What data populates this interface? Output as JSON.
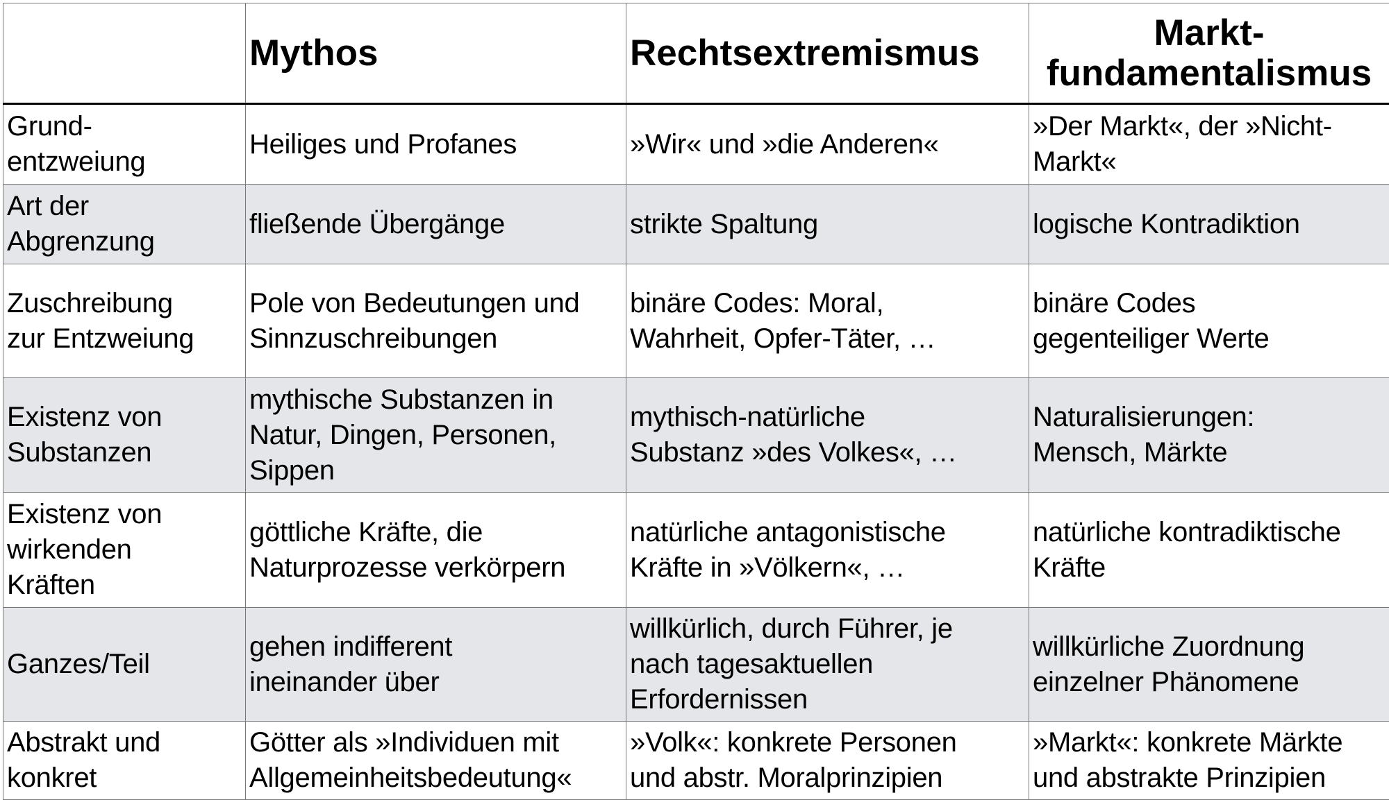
{
  "header": [
    "",
    "Mythos",
    "Rechtsextremismus",
    "Markt-\nfundamentalismus"
  ],
  "rows": [
    [
      "Grund-\nentzweiung",
      "Heiliges und Profanes",
      "»Wir« und »die Anderen«",
      "»Der Markt«, der »Nicht-\nMarkt«"
    ],
    [
      "Art der\nAbgrenzung",
      "fließende Übergänge",
      "strikte Spaltung",
      "logische Kontradiktion"
    ],
    [
      "Zuschreibung\nzur Entzweiung",
      "Pole von Bedeutungen und\nSinnzuschreibungen",
      "binäre Codes: Moral,\nWahrheit, Opfer-Täter, …",
      "binäre Codes\ngegenteiliger Werte"
    ],
    [
      "Existenz von\nSubstanzen",
      "mythische Substanzen in\nNatur, Dingen, Personen,\nSippen",
      "mythisch-natürliche\nSubstanz »des Volkes«, …",
      "Naturalisierungen:\nMensch, Märkte"
    ],
    [
      "Existenz von\nwirkenden\nKräften",
      "göttliche Kräfte, die\nNaturprozesse verkörpern",
      "natürliche antagonistische\nKräfte in »Völkern«, …",
      "natürliche kontradiktische\nKräfte"
    ],
    [
      "Ganzes/Teil",
      "gehen indifferent\nineinander über",
      "willkürlich, durch Führer, je\nnach tagesaktuellen\nErfordernissen",
      "willkürliche Zuordnung\neinzelner Phänomene"
    ],
    [
      "Abstrakt und\nkonkret",
      "Götter als »Individuen mit\nAllgemeinheitsbedeutung«",
      "»Volk«: konkrete Personen\nund abstr. Moralprinzipien",
      "»Markt«: konkrete Märkte\nund abstrakte Prinzipien"
    ]
  ],
  "colors": {
    "alt_row": "#e5e6ea",
    "border": "#777777"
  }
}
